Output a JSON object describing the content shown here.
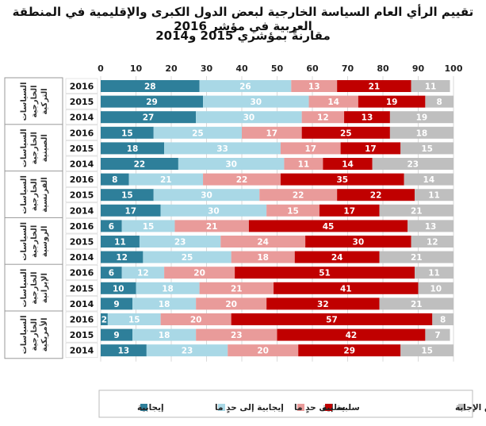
{
  "title_line1": "تقييم الرأي العام السياسة الخارجية لبعض الدول الكبرى والإقليمية في المنطقة العربية في مؤشر 2016",
  "title_line2": "مقارنةً بمؤشري 2015 و2014",
  "chart_data": {
    "type": "bar",
    "orientation": "horizontal",
    "stacked": true,
    "xlim": [
      0,
      100
    ],
    "x_ticks": [
      "0",
      "10",
      "20",
      "30",
      "40",
      "50",
      "60",
      "70",
      "80",
      "90",
      "100"
    ],
    "grid": true,
    "legend_position": "bottom",
    "series": [
      {
        "name": "إيجابية",
        "color": "#2e7f9a"
      },
      {
        "name": "إيجابية إلى حدٍ ما",
        "color": "#a9d8e6"
      },
      {
        "name": "سلبية إلى حدٍ ما",
        "color": "#e99b9a"
      },
      {
        "name": "سلبية",
        "color": "#c00000"
      },
      {
        "name": "لا أعرف / رفض الإجابة",
        "color": "#bfbfbf"
      }
    ],
    "groups": [
      {
        "label": "السياسات الخارجية التركية",
        "rows": [
          {
            "year": "2016",
            "values": [
              28,
              26,
              13,
              21,
              11
            ]
          },
          {
            "year": "2015",
            "values": [
              29,
              30,
              14,
              19,
              8
            ]
          },
          {
            "year": "2014",
            "values": [
              27,
              30,
              12,
              13,
              19
            ]
          }
        ]
      },
      {
        "label": "السياسات الخارجية الصينية",
        "rows": [
          {
            "year": "2016",
            "values": [
              15,
              25,
              17,
              25,
              18
            ]
          },
          {
            "year": "2015",
            "values": [
              18,
              33,
              17,
              17,
              15
            ]
          },
          {
            "year": "2014",
            "values": [
              22,
              30,
              11,
              14,
              23
            ]
          }
        ]
      },
      {
        "label": "السياسات الخارجية الفرنسية",
        "rows": [
          {
            "year": "2016",
            "values": [
              8,
              21,
              22,
              35,
              14
            ]
          },
          {
            "year": "2015",
            "values": [
              15,
              30,
              22,
              22,
              11
            ]
          },
          {
            "year": "2014",
            "values": [
              17,
              30,
              15,
              17,
              21
            ]
          }
        ]
      },
      {
        "label": "السياسات الخارجية الروسية",
        "rows": [
          {
            "year": "2016",
            "values": [
              6,
              15,
              21,
              45,
              13
            ]
          },
          {
            "year": "2015",
            "values": [
              11,
              23,
              24,
              30,
              12
            ]
          },
          {
            "year": "2014",
            "values": [
              12,
              25,
              18,
              24,
              21
            ]
          }
        ]
      },
      {
        "label": "السياسات الخارجية الإيرانية",
        "rows": [
          {
            "year": "2016",
            "values": [
              6,
              12,
              20,
              51,
              11
            ]
          },
          {
            "year": "2015",
            "values": [
              10,
              18,
              21,
              41,
              10
            ]
          },
          {
            "year": "2014",
            "values": [
              9,
              18,
              20,
              32,
              21
            ]
          }
        ]
      },
      {
        "label": "السياسات الخارجية الأمريكية",
        "rows": [
          {
            "year": "2016",
            "values": [
              2,
              15,
              20,
              57,
              8
            ]
          },
          {
            "year": "2015",
            "values": [
              9,
              18,
              23,
              42,
              7
            ]
          },
          {
            "year": "2014",
            "values": [
              13,
              23,
              20,
              29,
              15
            ]
          }
        ]
      }
    ]
  }
}
